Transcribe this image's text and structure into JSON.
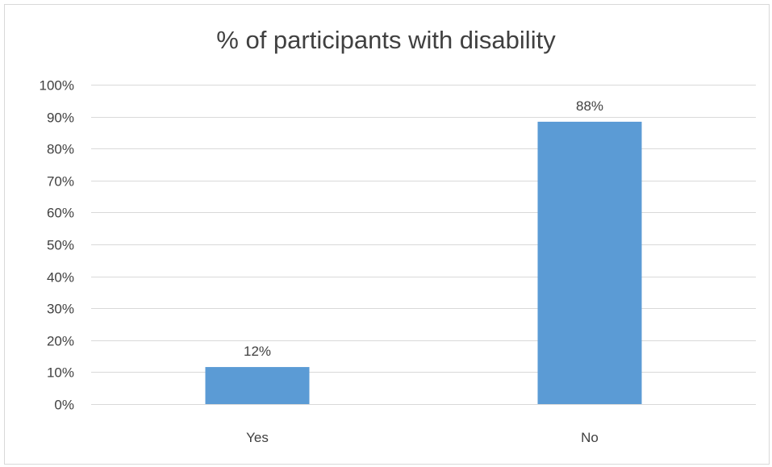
{
  "chart_data": {
    "type": "bar",
    "title": "% of participants with disability",
    "xlabel": "",
    "ylabel": "",
    "categories": [
      "Yes",
      "No"
    ],
    "values": [
      11.6,
      88.4
    ],
    "data_labels": [
      "12%",
      "88%"
    ],
    "ylim": [
      0,
      100
    ],
    "yticks": [
      0,
      10,
      20,
      30,
      40,
      50,
      60,
      70,
      80,
      90,
      100
    ],
    "ytick_labels": [
      "0%",
      "10%",
      "20%",
      "30%",
      "40%",
      "50%",
      "60%",
      "70%",
      "80%",
      "90%",
      "100%"
    ],
    "grid": true,
    "legend": "none",
    "colors": {
      "bar": "#5b9bd5",
      "grid": "#d9d9d9",
      "text": "#404040"
    }
  }
}
